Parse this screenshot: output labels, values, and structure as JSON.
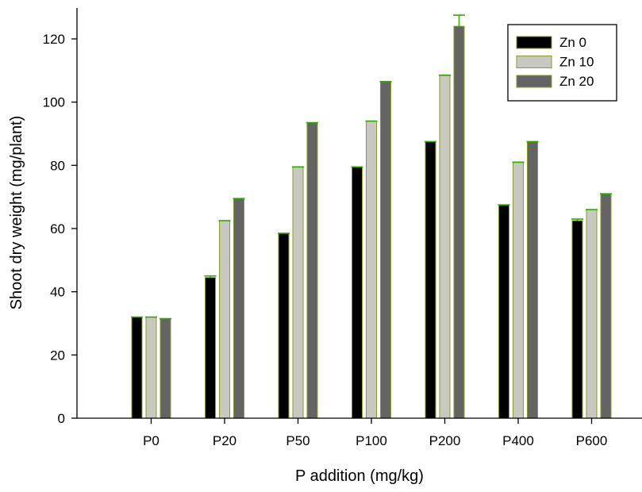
{
  "chart_data": {
    "type": "bar",
    "title": "",
    "xlabel": "P addition (mg/kg)",
    "ylabel": "Shoot dry weight (mg/plant)",
    "ylim": [
      0,
      130
    ],
    "yticks": [
      0,
      20,
      40,
      60,
      80,
      100,
      120
    ],
    "grid": false,
    "legend_position": "top-right",
    "categories": [
      "P0",
      "P20",
      "P50",
      "P100",
      "P200",
      "P400",
      "P600"
    ],
    "series": [
      {
        "name": "Zn 0",
        "color": "#000000",
        "values": [
          32,
          44.5,
          58.5,
          79.5,
          87.5,
          67.5,
          62.5
        ],
        "errors": [
          0,
          0.5,
          0,
          0,
          0,
          0,
          0.5
        ]
      },
      {
        "name": "Zn 10",
        "color": "#c8c8c0",
        "values": [
          32,
          62.5,
          79.5,
          94,
          108.5,
          81,
          66
        ],
        "errors": [
          0,
          0,
          0,
          0,
          0,
          0,
          0
        ]
      },
      {
        "name": "Zn 20",
        "color": "#646464",
        "values": [
          31.5,
          69.5,
          93.5,
          106.5,
          124,
          87.5,
          71
        ],
        "errors": [
          0,
          0,
          0,
          0,
          3.5,
          0,
          0
        ]
      }
    ],
    "errorbar_color": "#2fa800",
    "bar_edge_color": "#8a9a2a"
  }
}
